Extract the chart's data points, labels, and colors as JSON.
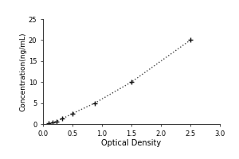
{
  "x_data": [
    0.1,
    0.156,
    0.225,
    0.325,
    0.5,
    0.88,
    1.5,
    2.5
  ],
  "y_data": [
    0.156,
    0.313,
    0.625,
    1.25,
    2.5,
    5.0,
    10.0,
    20.0
  ],
  "xlabel": "Optical Density",
  "ylabel": "Concentration(ng/mL)",
  "xlim": [
    0,
    3
  ],
  "ylim": [
    0,
    25
  ],
  "xticks": [
    0,
    0.5,
    1,
    1.5,
    2,
    2.5,
    3
  ],
  "yticks": [
    0,
    5,
    10,
    15,
    20,
    25
  ],
  "line_color": "#444444",
  "marker_color": "#111111",
  "background_color": "#ffffff",
  "plot_bg_color": "#ffffff",
  "axis_fontsize": 7,
  "tick_fontsize": 6,
  "ylabel_fontsize": 6.5
}
